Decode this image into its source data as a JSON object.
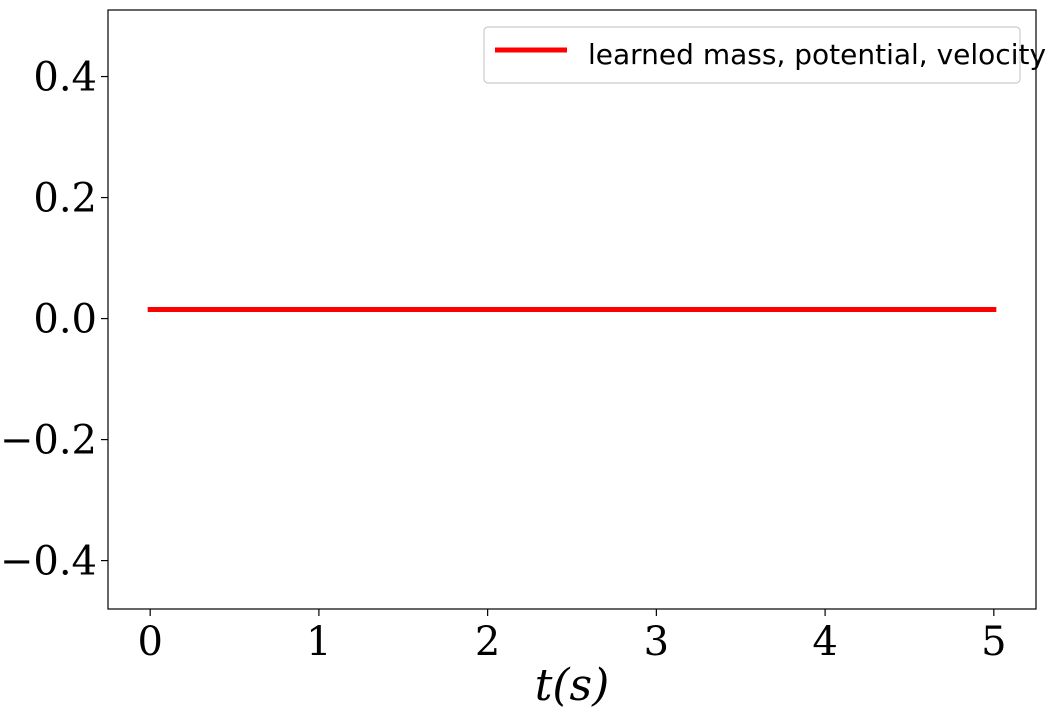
{
  "chart_data": {
    "type": "line",
    "title": "",
    "xlabel": "t(s)",
    "ylabel": "",
    "xlim": [
      -0.25,
      5.25
    ],
    "ylim": [
      -0.48,
      0.51
    ],
    "xticks": [
      0,
      1,
      2,
      3,
      4,
      5
    ],
    "xtick_labels": [
      "0",
      "1",
      "2",
      "3",
      "4",
      "5"
    ],
    "yticks": [
      -0.4,
      -0.2,
      0.0,
      0.2,
      0.4
    ],
    "ytick_labels": [
      "−0.4",
      "−0.2",
      "0.0",
      "0.2",
      "0.4"
    ],
    "grid": false,
    "legend_position": "top-right",
    "series": [
      {
        "name": "learned mass, potential, velocity",
        "color": "#ff0000",
        "x": [
          0,
          1,
          2,
          3,
          4,
          5
        ],
        "y": [
          0.015,
          0.015,
          0.015,
          0.015,
          0.015,
          0.015
        ]
      }
    ]
  }
}
